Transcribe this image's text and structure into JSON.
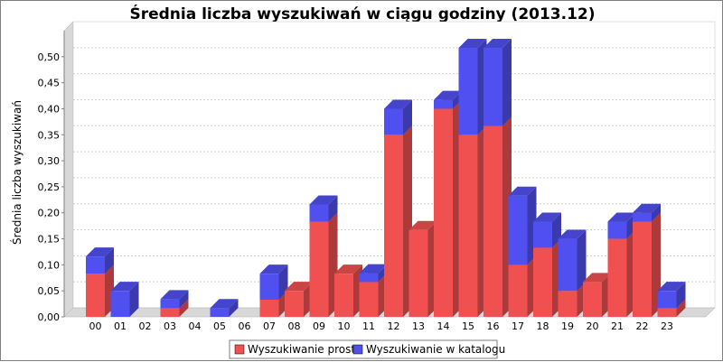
{
  "chart_data": {
    "type": "bar",
    "stacked": true,
    "title": "Średnia liczba wyszukiwań w ciągu godziny (2013.12)",
    "xlabel": "",
    "ylabel": "Średnia liczba wyszukiwań",
    "ylim": [
      0,
      0.55
    ],
    "yticks": [
      "0,00",
      "0,05",
      "0,10",
      "0,15",
      "0,20",
      "0,25",
      "0,30",
      "0,35",
      "0,40",
      "0,45",
      "0,50"
    ],
    "grid": true,
    "legend_position": "bottom",
    "categories": [
      "00",
      "01",
      "02",
      "03",
      "04",
      "05",
      "06",
      "07",
      "08",
      "09",
      "10",
      "11",
      "12",
      "13",
      "14",
      "15",
      "16",
      "17",
      "18",
      "19",
      "20",
      "21",
      "22",
      "23"
    ],
    "series": [
      {
        "name": "Wyszukiwanie proste",
        "color": "#f05050",
        "values": [
          0.083,
          0.0,
          0.0,
          0.017,
          0.0,
          0.0,
          0.0,
          0.033,
          0.05,
          0.183,
          0.083,
          0.067,
          0.35,
          0.167,
          0.4,
          0.35,
          0.367,
          0.1,
          0.133,
          0.05,
          0.067,
          0.15,
          0.183,
          0.017
        ]
      },
      {
        "name": "Wyszukiwanie w katalogu",
        "color": "#5050f0",
        "values": [
          0.033,
          0.05,
          0.0,
          0.017,
          0.0,
          0.017,
          0.0,
          0.05,
          0.0,
          0.033,
          0.0,
          0.017,
          0.05,
          0.0,
          0.017,
          0.167,
          0.15,
          0.133,
          0.05,
          0.1,
          0.0,
          0.033,
          0.017,
          0.033
        ]
      }
    ]
  }
}
